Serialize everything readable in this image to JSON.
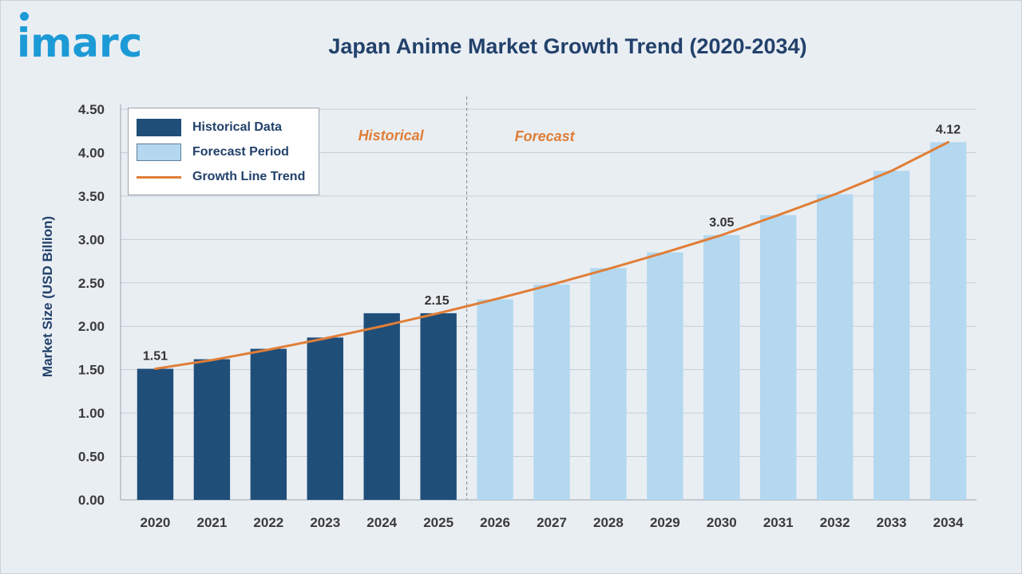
{
  "brand": {
    "logo_text": "imarc"
  },
  "header": {
    "title": "Japan Anime Market Growth Trend (2020-2034)"
  },
  "legend": {
    "items": [
      {
        "label": "Historical Data",
        "kind": "bar",
        "color": "#1f4e79"
      },
      {
        "label": "Forecast Period",
        "kind": "bar",
        "color": "#b3d8f0"
      },
      {
        "label": "Growth Line Trend",
        "kind": "line",
        "color": "#e07e37"
      }
    ]
  },
  "periods": {
    "historical_label": "Historical",
    "forecast_label": "Forecast"
  },
  "chart_data": {
    "type": "bar",
    "title": "Japan Anime Market Growth Trend (2020-2034)",
    "xlabel": "",
    "ylabel": "Market Size (USD Billion)",
    "ylim": [
      0,
      4.5
    ],
    "yticks": [
      "0.00",
      "0.50",
      "1.00",
      "1.50",
      "2.00",
      "2.50",
      "3.00",
      "3.50",
      "4.00",
      "4.50"
    ],
    "grid": "horizontal",
    "legend_position": "top-left",
    "categories": [
      "2020",
      "2021",
      "2022",
      "2023",
      "2024",
      "2025",
      "2026",
      "2027",
      "2028",
      "2029",
      "2030",
      "2031",
      "2032",
      "2033",
      "2034"
    ],
    "series": [
      {
        "name": "Historical Data",
        "color": "#1f4e79",
        "values": [
          1.51,
          1.62,
          1.74,
          1.87,
          2.15,
          2.15,
          null,
          null,
          null,
          null,
          null,
          null,
          null,
          null,
          null
        ]
      },
      {
        "name": "Forecast Period",
        "color": "#b3d8f0",
        "values": [
          null,
          null,
          null,
          null,
          null,
          null,
          2.31,
          2.48,
          2.67,
          2.85,
          3.05,
          3.28,
          3.52,
          3.79,
          4.12
        ]
      },
      {
        "name": "Growth Line Trend",
        "type": "line",
        "color": "#e07e37",
        "values": [
          1.51,
          1.61,
          1.73,
          1.86,
          2.0,
          2.15,
          2.31,
          2.48,
          2.66,
          2.85,
          3.05,
          3.28,
          3.52,
          3.79,
          4.12
        ]
      }
    ],
    "data_labels": [
      {
        "category": "2020",
        "text": "1.51"
      },
      {
        "category": "2025",
        "text": "2.15"
      },
      {
        "category": "2030",
        "text": "3.05"
      },
      {
        "category": "2034",
        "text": "4.12"
      }
    ],
    "divider_after": "2025"
  }
}
